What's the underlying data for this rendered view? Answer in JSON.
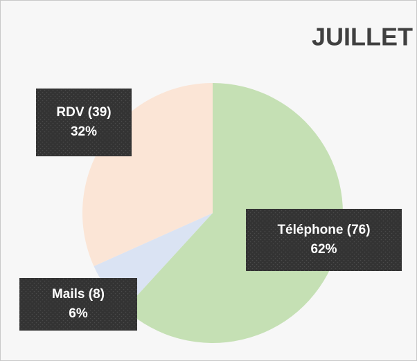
{
  "chart_data": {
    "type": "pie",
    "title": "JUILLET",
    "values": [
      76,
      8,
      39
    ],
    "value_labels": [
      "Téléphone (76)",
      "Mails (8)",
      "RDV (39)"
    ],
    "percentages": [
      62,
      6,
      32
    ],
    "percentage_labels": [
      "62%",
      "6%",
      "32%"
    ],
    "colors": [
      "#c5e0b4",
      "#dae3f3",
      "#fbe5d6"
    ]
  }
}
